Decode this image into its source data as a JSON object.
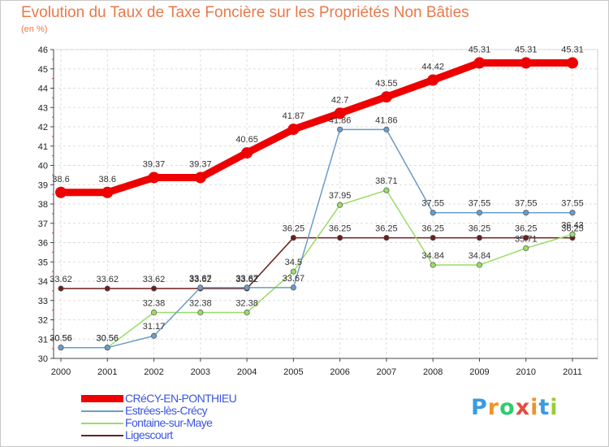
{
  "chart_data": {
    "type": "line",
    "title": "Evolution du Taux de Taxe Foncière sur les Propriétés Non Bâties",
    "subtitle": "(en %)",
    "x": [
      "2000",
      "2001",
      "2002",
      "2003",
      "2004",
      "2005",
      "2006",
      "2007",
      "2008",
      "2009",
      "2010",
      "2011"
    ],
    "yticks": [
      "30",
      "31",
      "32",
      "33",
      "34",
      "35",
      "36",
      "37",
      "38",
      "39",
      "40",
      "41",
      "42",
      "43",
      "44",
      "45",
      "46"
    ],
    "ylim": [
      30,
      46
    ],
    "grid": true,
    "legend_position": "bottom-left",
    "series": [
      {
        "name": "Ligescourt",
        "color": "#6b1f1f",
        "values": [
          33.62,
          33.62,
          33.62,
          33.62,
          33.62,
          36.25,
          36.25,
          36.25,
          36.25,
          36.25,
          36.25,
          36.25
        ],
        "labels": [
          "33.62",
          "33.62",
          "33.62",
          "33.62",
          "33.62",
          "36.25",
          "36.25",
          "36.25",
          "36.25",
          "36.25",
          "36.25",
          "36.25"
        ]
      },
      {
        "name": "Fontaine-sur-Maye",
        "color": "#99dd66",
        "values": [
          30.56,
          30.56,
          32.38,
          32.38,
          32.38,
          34.5,
          37.95,
          38.71,
          34.84,
          34.84,
          35.71,
          36.43
        ],
        "labels": [
          "30.56",
          "30.56",
          "32.38",
          "32.38",
          "32.38",
          "34.5",
          "37.95",
          "38.71",
          "34.84",
          "34.84",
          "35.71",
          "36.43"
        ]
      },
      {
        "name": "Estrées-lès-Crécy",
        "color": "#6a9cc8",
        "values": [
          30.56,
          30.56,
          31.17,
          33.67,
          33.67,
          33.67,
          41.86,
          41.86,
          37.55,
          37.55,
          37.55,
          37.55
        ],
        "labels": [
          "30.56",
          "30.56",
          "31.17",
          "33.67",
          "33.67",
          "33.67",
          "41.86",
          "41.86",
          "37.55",
          "37.55",
          "37.55",
          "37.55"
        ]
      },
      {
        "name": "CRéCY-EN-PONTHIEU",
        "color": "#ee0000",
        "values": [
          38.6,
          38.6,
          39.37,
          39.37,
          40.65,
          41.87,
          42.7,
          43.55,
          44.42,
          45.31,
          45.31,
          45.31
        ],
        "labels": [
          "38.6",
          "38.6",
          "39.37",
          "39.37",
          "40.65",
          "41.87",
          "42.7",
          "43.55",
          "44.42",
          "45.31",
          "45.31",
          "45.31"
        ]
      }
    ]
  },
  "legend": {
    "items": [
      {
        "label": "CRéCY-EN-PONTHIEU",
        "color": "#ee0000"
      },
      {
        "label": "Estrées-lès-Crécy",
        "color": "#6a9cc8"
      },
      {
        "label": "Fontaine-sur-Maye",
        "color": "#99dd66"
      },
      {
        "label": "Ligescourt",
        "color": "#6b1f1f"
      }
    ]
  },
  "brand": {
    "letters": [
      "P",
      "r",
      "o",
      "x",
      "i",
      "t",
      "i"
    ],
    "colors": [
      "#3a9be0",
      "#f0932b",
      "#2ecc71",
      "#e74c3c",
      "#f0932b",
      "#3a9be0",
      "#9acd32"
    ]
  }
}
